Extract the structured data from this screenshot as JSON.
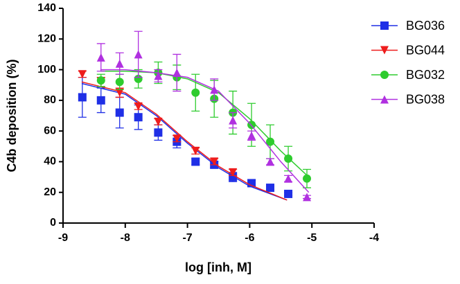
{
  "chart_data": {
    "type": "scatter",
    "xlabel": "log [inh, M]",
    "ylabel": "C4b deposition (%)",
    "xlim": [
      -9,
      -4
    ],
    "xticks": [
      -9,
      -8,
      -7,
      -6,
      -5,
      -4
    ],
    "ylim": [
      0,
      140
    ],
    "yticks": [
      0,
      20,
      40,
      60,
      80,
      100,
      120,
      140
    ],
    "legend": "right",
    "series": [
      {
        "name": "BG036",
        "color": "#1f2fe6",
        "marker": "square",
        "x": [
          -8.69,
          -8.39,
          -8.09,
          -7.79,
          -7.47,
          -7.17,
          -6.87,
          -6.57,
          -6.27,
          -5.97,
          -5.67,
          -5.38
        ],
        "values": [
          82,
          80,
          72,
          69,
          59,
          53,
          40,
          38,
          30,
          26,
          23,
          19
        ],
        "errors": [
          13,
          8,
          10,
          8,
          5,
          4,
          2,
          2,
          3,
          2,
          1,
          1
        ],
        "fit": {
          "x": [
            -8.7,
            -8,
            -7.5,
            -7,
            -6.5,
            -6,
            -5.4
          ],
          "values": [
            91,
            84,
            70,
            52,
            36,
            24,
            15
          ]
        }
      },
      {
        "name": "BG044",
        "color": "#ee1c1c",
        "marker": "triangle-down",
        "x": [
          -8.69,
          -8.39,
          -8.09,
          -7.79,
          -7.47,
          -7.17,
          -6.87,
          -6.57,
          -6.27
        ],
        "values": [
          97,
          92,
          85,
          76,
          66,
          55,
          47,
          40,
          33
        ],
        "errors": [
          2,
          3,
          3,
          2,
          2,
          2,
          2,
          2,
          2
        ],
        "fit": {
          "x": [
            -8.7,
            -8,
            -7.5,
            -7,
            -6.5,
            -6,
            -5.4
          ],
          "values": [
            92,
            85,
            71,
            53,
            37,
            25,
            15
          ]
        }
      },
      {
        "name": "BG032",
        "color": "#2ecc2e",
        "marker": "circle",
        "x": [
          -8.39,
          -8.09,
          -7.79,
          -7.47,
          -7.17,
          -6.87,
          -6.57,
          -6.27,
          -5.97,
          -5.67,
          -5.38,
          -5.08
        ],
        "values": [
          93,
          92,
          94,
          98,
          95,
          85,
          81,
          72,
          64,
          53,
          42,
          29
        ],
        "errors": [
          4,
          5,
          6,
          7,
          8,
          12,
          12,
          14,
          14,
          11,
          8,
          6
        ],
        "fit": {
          "x": [
            -8.4,
            -8,
            -7.5,
            -7,
            -6.5,
            -6,
            -5.5,
            -5.05
          ],
          "values": [
            99,
            99,
            98,
            94,
            85,
            68,
            47,
            30
          ]
        }
      },
      {
        "name": "BG038",
        "color": "#b030e0",
        "marker": "triangle-up",
        "x": [
          -8.39,
          -8.09,
          -7.79,
          -7.47,
          -7.17,
          -6.57,
          -6.27,
          -5.97,
          -5.67,
          -5.38,
          -5.08
        ],
        "values": [
          108,
          104,
          110,
          96,
          98,
          87,
          67,
          57,
          40,
          29,
          17
        ],
        "errors": [
          9,
          7,
          15,
          4,
          12,
          7,
          5,
          3,
          2,
          2,
          1
        ],
        "fit": {
          "x": [
            -8.4,
            -8,
            -7.5,
            -7,
            -6.5,
            -6,
            -5.5,
            -5.05
          ],
          "values": [
            100,
            100,
            98,
            95,
            86,
            65,
            40,
            20
          ]
        }
      }
    ]
  }
}
